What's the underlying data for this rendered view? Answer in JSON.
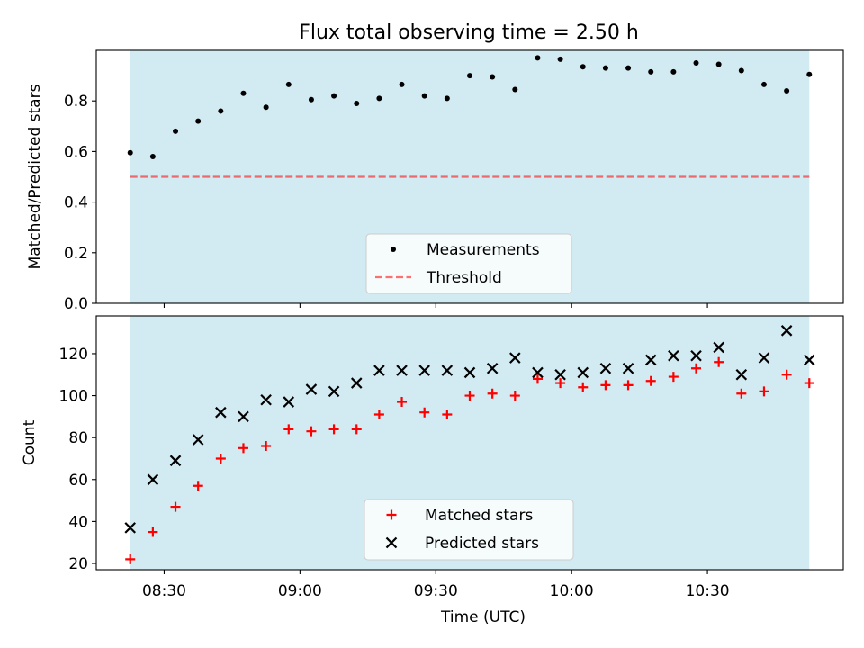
{
  "title": "Flux total observing time = 2.50 h",
  "colors": {
    "shade": "#add8e6",
    "threshold": "#ff0000",
    "matched": "#ff0000",
    "predicted": "#000000",
    "points": "#000000"
  },
  "time_ticks": [
    "08:30",
    "09:00",
    "09:30",
    "10:00",
    "10:30"
  ],
  "chart_data": [
    {
      "type": "scatter",
      "name": "ratio",
      "ylabel": "Matched/Predicted stars",
      "xlabel": "",
      "x_minutes_since_08_30": [
        -7.5,
        -2.5,
        2.5,
        7.5,
        12.5,
        17.5,
        22.5,
        27.5,
        32.5,
        37.5,
        42.5,
        47.5,
        52.5,
        57.5,
        62.5,
        67.5,
        72.5,
        77.5,
        82.5,
        87.5,
        92.5,
        97.5,
        102.5,
        107.5,
        112.5,
        117.5,
        122.5,
        127.5,
        132.5,
        137.5,
        142.5
      ],
      "xlim": [
        -15,
        150
      ],
      "ylim": [
        0,
        1.0
      ],
      "yticks": [
        0.0,
        0.2,
        0.4,
        0.6,
        0.8
      ],
      "ytick_labels": [
        "0.0",
        "0.2",
        "0.4",
        "0.6",
        "0.8"
      ],
      "shaded_span": [
        -7.5,
        142.5
      ],
      "series": [
        {
          "name": "Measurements",
          "marker": "dot",
          "values": [
            0.595,
            0.58,
            0.68,
            0.72,
            0.76,
            0.83,
            0.775,
            0.865,
            0.805,
            0.82,
            0.79,
            0.81,
            0.865,
            0.82,
            0.81,
            0.9,
            0.895,
            0.845,
            0.97,
            0.965,
            0.935,
            0.93,
            0.93,
            0.915,
            0.915,
            0.95,
            0.945,
            0.92,
            0.865,
            0.84,
            0.905
          ]
        }
      ],
      "threshold": {
        "name": "Threshold",
        "value": 0.5
      },
      "legend": {
        "entries": [
          "Measurements",
          "Threshold"
        ],
        "placement": "lower-center"
      }
    },
    {
      "type": "scatter",
      "name": "counts",
      "ylabel": "Count",
      "xlabel": "Time (UTC)",
      "x_minutes_since_08_30": [
        -7.5,
        -2.5,
        2.5,
        7.5,
        12.5,
        17.5,
        22.5,
        27.5,
        32.5,
        37.5,
        42.5,
        47.5,
        52.5,
        57.5,
        62.5,
        67.5,
        72.5,
        77.5,
        82.5,
        87.5,
        92.5,
        97.5,
        102.5,
        107.5,
        112.5,
        117.5,
        122.5,
        127.5,
        132.5,
        137.5,
        142.5
      ],
      "xlim": [
        -15,
        150
      ],
      "ylim": [
        17,
        138
      ],
      "yticks": [
        20,
        40,
        60,
        80,
        100,
        120
      ],
      "ytick_labels": [
        "20",
        "40",
        "60",
        "80",
        "100",
        "120"
      ],
      "shaded_span": [
        -7.5,
        142.5
      ],
      "series": [
        {
          "name": "Matched stars",
          "marker": "plus",
          "values": [
            22,
            35,
            47,
            57,
            70,
            75,
            76,
            84,
            83,
            84,
            84,
            91,
            97,
            92,
            91,
            100,
            101,
            100,
            108,
            106,
            104,
            105,
            105,
            107,
            109,
            113,
            116,
            101,
            102,
            110,
            106
          ]
        },
        {
          "name": "Predicted stars",
          "marker": "x",
          "values": [
            37,
            60,
            69,
            79,
            92,
            90,
            98,
            97,
            103,
            102,
            106,
            112,
            112,
            112,
            112,
            111,
            113,
            118,
            111,
            110,
            111,
            113,
            113,
            117,
            119,
            119,
            123,
            110,
            118,
            131,
            117
          ]
        }
      ],
      "legend": {
        "entries": [
          "Matched stars",
          "Predicted stars"
        ],
        "placement": "lower-center"
      }
    }
  ]
}
